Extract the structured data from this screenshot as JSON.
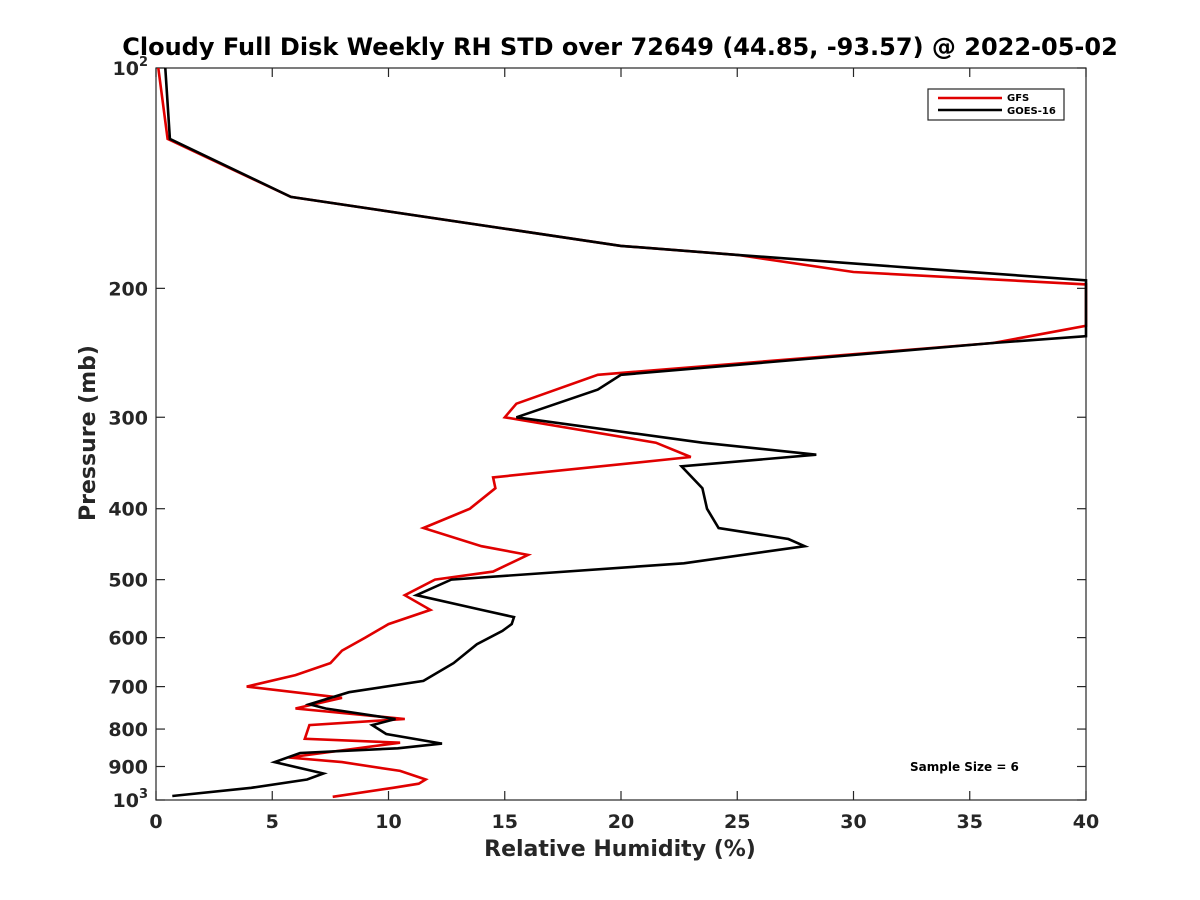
{
  "chart_data": {
    "type": "line",
    "title": "Cloudy Full Disk Weekly RH STD over 72649 (44.85, -93.57) @ 2022-05-02",
    "xlabel": "Relative Humidity (%)",
    "ylabel": "Pressure (mb)",
    "xlim": [
      0,
      40
    ],
    "ylim": [
      100,
      1000
    ],
    "y_scale": "log",
    "y_reversed": true,
    "grid": false,
    "legend_position": "top-right",
    "xticks": [
      0,
      5,
      10,
      15,
      20,
      25,
      30,
      35,
      40
    ],
    "xtick_labels": [
      "0",
      "5",
      "10",
      "15",
      "20",
      "25",
      "30",
      "35",
      "40"
    ],
    "yticks": [
      100,
      200,
      300,
      400,
      500,
      600,
      700,
      800,
      900,
      1000
    ],
    "ytick_labels": [
      {
        "value": 100,
        "base": "10",
        "exp": "2"
      },
      {
        "value": 200,
        "base": "200",
        "exp": ""
      },
      {
        "value": 300,
        "base": "300",
        "exp": ""
      },
      {
        "value": 400,
        "base": "400",
        "exp": ""
      },
      {
        "value": 500,
        "base": "500",
        "exp": ""
      },
      {
        "value": 600,
        "base": "600",
        "exp": ""
      },
      {
        "value": 700,
        "base": "700",
        "exp": ""
      },
      {
        "value": 800,
        "base": "800",
        "exp": ""
      },
      {
        "value": 900,
        "base": "900",
        "exp": ""
      },
      {
        "value": 1000,
        "base": "10",
        "exp": "3"
      }
    ],
    "annotation": "Sample Size = 6",
    "series": [
      {
        "name": "GFS",
        "color": "#e00000",
        "points": [
          [
            0.1,
            100
          ],
          [
            0.5,
            125
          ],
          [
            5.8,
            150
          ],
          [
            20,
            175
          ],
          [
            25,
            180
          ],
          [
            30,
            190
          ],
          [
            40,
            197.5
          ],
          [
            40,
            225
          ],
          [
            36,
            237.5
          ],
          [
            19,
            262.5
          ],
          [
            15.5,
            287.5
          ],
          [
            15,
            300
          ],
          [
            21.5,
            325
          ],
          [
            23,
            340
          ],
          [
            14.5,
            362.5
          ],
          [
            14.6,
            375
          ],
          [
            13.5,
            400
          ],
          [
            11.5,
            425
          ],
          [
            14,
            450
          ],
          [
            16,
            462.5
          ],
          [
            14.5,
            487.5
          ],
          [
            12,
            500
          ],
          [
            10.7,
            525
          ],
          [
            11.8,
            550
          ],
          [
            10,
            575
          ],
          [
            9,
            600
          ],
          [
            8,
            625
          ],
          [
            7.5,
            650
          ],
          [
            6,
            675
          ],
          [
            3.9,
            700
          ],
          [
            8,
            725
          ],
          [
            6,
            750
          ],
          [
            10.7,
            775
          ],
          [
            6.6,
            790
          ],
          [
            6.4,
            825
          ],
          [
            10.5,
            835
          ],
          [
            5.7,
            875
          ],
          [
            8,
            887.5
          ],
          [
            10.5,
            912.5
          ],
          [
            11.6,
            937.5
          ],
          [
            11.3,
            950
          ],
          [
            10.2,
            962.5
          ],
          [
            7.6,
            990
          ]
        ]
      },
      {
        "name": "GOES-16",
        "color": "#000000",
        "points": [
          [
            0.4,
            100
          ],
          [
            0.6,
            125
          ],
          [
            5.8,
            150
          ],
          [
            20,
            175
          ],
          [
            25,
            180
          ],
          [
            32.5,
            187.5
          ],
          [
            40,
            195
          ],
          [
            40,
            232.5
          ],
          [
            36,
            237.5
          ],
          [
            20,
            262.5
          ],
          [
            19,
            275
          ],
          [
            15.5,
            300
          ],
          [
            23.5,
            325
          ],
          [
            28.4,
            337.5
          ],
          [
            22.6,
            350
          ],
          [
            23.5,
            375
          ],
          [
            23.7,
            400
          ],
          [
            24.2,
            425
          ],
          [
            27.2,
            440
          ],
          [
            27.9,
            450
          ],
          [
            22.7,
            475
          ],
          [
            12.7,
            500
          ],
          [
            11.2,
            525
          ],
          [
            14,
            550
          ],
          [
            15.4,
            562.5
          ],
          [
            15.3,
            575
          ],
          [
            14.9,
            587.5
          ],
          [
            13.8,
            612.5
          ],
          [
            12.8,
            650
          ],
          [
            11.5,
            687.5
          ],
          [
            8.3,
            712.5
          ],
          [
            6.6,
            740
          ],
          [
            7.3,
            750
          ],
          [
            10.3,
            775
          ],
          [
            9.3,
            790
          ],
          [
            9.9,
            812.5
          ],
          [
            12.3,
            837.5
          ],
          [
            10.4,
            850
          ],
          [
            6.2,
            862.5
          ],
          [
            5.1,
            887.5
          ],
          [
            7.2,
            920
          ],
          [
            6.5,
            937.5
          ],
          [
            4.1,
            962.5
          ],
          [
            0.7,
            987.5
          ]
        ]
      }
    ]
  }
}
